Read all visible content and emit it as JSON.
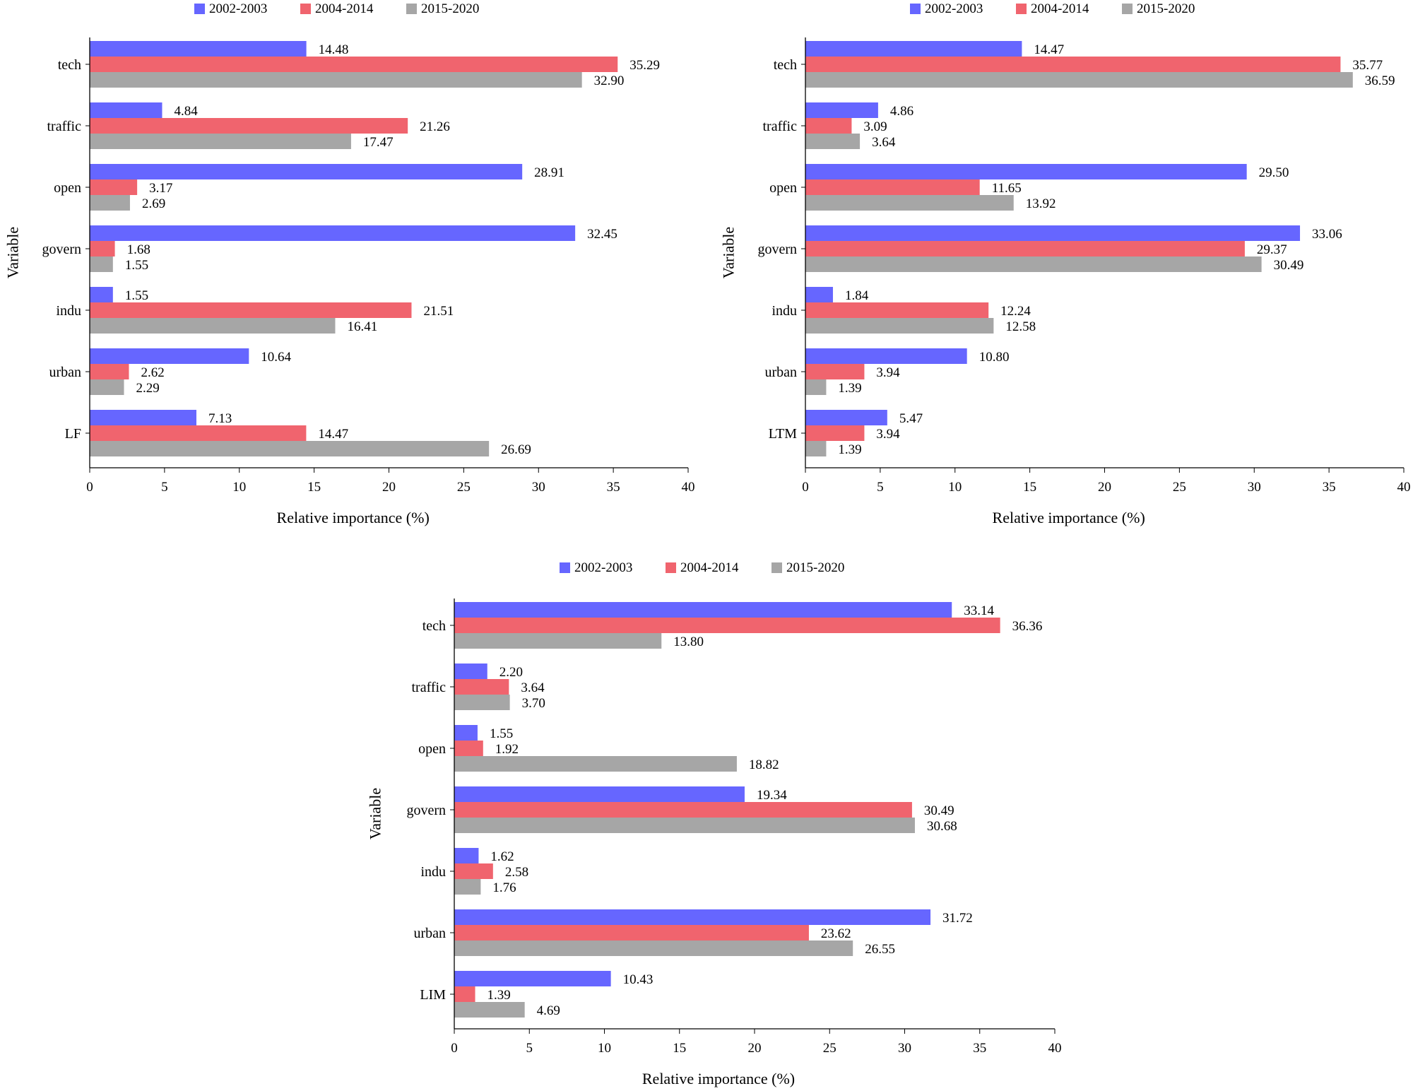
{
  "chart_data": [
    {
      "type": "bar",
      "orientation": "horizontal",
      "title": "",
      "xlabel": "Relative importance (%)",
      "ylabel": "Variable",
      "xlim": [
        0,
        40
      ],
      "xticks": [
        "0",
        "5",
        "10",
        "15",
        "20",
        "25",
        "30",
        "35",
        "40"
      ],
      "grid": false,
      "legend_position": "top",
      "categories": [
        "tech",
        "traffic",
        "open",
        "govern",
        "indu",
        "urban",
        "LF"
      ],
      "series": [
        {
          "name": "2002-2003",
          "color": "#6666ff",
          "values": [
            14.48,
            4.84,
            28.91,
            32.45,
            1.55,
            10.64,
            7.13
          ],
          "labels": [
            "14.48",
            "4.84",
            "28.91",
            "32.45",
            "1.55",
            "10.64",
            "7.13"
          ]
        },
        {
          "name": "2004-2014",
          "color": "#f0646e",
          "values": [
            35.29,
            21.26,
            3.17,
            1.68,
            21.51,
            2.62,
            14.47
          ],
          "labels": [
            "35.29",
            "21.26",
            "3.17",
            "1.68",
            "21.51",
            "2.62",
            "14.47"
          ]
        },
        {
          "name": "2015-2020",
          "color": "#a6a6a6",
          "values": [
            32.9,
            17.47,
            2.69,
            1.55,
            16.41,
            2.29,
            26.69
          ],
          "labels": [
            "32.90",
            "17.47",
            "2.69",
            "1.55",
            "16.41",
            "2.29",
            "26.69"
          ]
        }
      ]
    },
    {
      "type": "bar",
      "orientation": "horizontal",
      "title": "",
      "xlabel": "Relative importance (%)",
      "ylabel": "Variable",
      "xlim": [
        0,
        40
      ],
      "xticks": [
        "0",
        "5",
        "10",
        "15",
        "20",
        "25",
        "30",
        "35",
        "40"
      ],
      "grid": false,
      "legend_position": "top",
      "categories": [
        "tech",
        "traffic",
        "open",
        "govern",
        "indu",
        "urban",
        "LTM"
      ],
      "series": [
        {
          "name": "2002-2003",
          "color": "#6666ff",
          "values": [
            14.47,
            4.86,
            29.5,
            33.06,
            1.84,
            10.8,
            5.47
          ],
          "labels": [
            "14.47",
            "4.86",
            "29.50",
            "33.06",
            "1.84",
            "10.80",
            "5.47"
          ]
        },
        {
          "name": "2004-2014",
          "color": "#f0646e",
          "values": [
            35.77,
            3.09,
            11.65,
            29.37,
            12.24,
            3.94,
            3.94
          ],
          "labels": [
            "35.77",
            "3.09",
            "11.65",
            "29.37",
            "12.24",
            "3.94",
            "3.94"
          ]
        },
        {
          "name": "2015-2020",
          "color": "#a6a6a6",
          "values": [
            36.59,
            3.64,
            13.92,
            30.49,
            12.58,
            1.39,
            1.39
          ],
          "labels": [
            "36.59",
            "3.64",
            "13.92",
            "30.49",
            "12.58",
            "1.39",
            "1.39"
          ]
        }
      ]
    },
    {
      "type": "bar",
      "orientation": "horizontal",
      "title": "",
      "xlabel": "Relative importance (%)",
      "ylabel": "Variable",
      "xlim": [
        0,
        40
      ],
      "xticks": [
        "0",
        "5",
        "10",
        "15",
        "20",
        "25",
        "30",
        "35",
        "40"
      ],
      "grid": false,
      "legend_position": "top",
      "categories": [
        "tech",
        "traffic",
        "open",
        "govern",
        "indu",
        "urban",
        "LIM"
      ],
      "series": [
        {
          "name": "2002-2003",
          "color": "#6666ff",
          "values": [
            33.14,
            2.2,
            1.55,
            19.34,
            1.62,
            31.72,
            10.43
          ],
          "labels": [
            "33.14",
            "2.20",
            "1.55",
            "19.34",
            "1.62",
            "31.72",
            "10.43"
          ]
        },
        {
          "name": "2004-2014",
          "color": "#f0646e",
          "values": [
            36.36,
            3.64,
            1.92,
            30.49,
            2.58,
            23.62,
            1.39
          ],
          "labels": [
            "36.36",
            "3.64",
            "1.92",
            "30.49",
            "2.58",
            "23.62",
            "1.39"
          ]
        },
        {
          "name": "2015-2020",
          "color": "#a6a6a6",
          "values": [
            13.8,
            3.7,
            18.82,
            30.68,
            1.76,
            26.55,
            4.69
          ],
          "labels": [
            "13.80",
            "3.70",
            "18.82",
            "30.68",
            "1.76",
            "26.55",
            "4.69"
          ]
        }
      ]
    }
  ]
}
